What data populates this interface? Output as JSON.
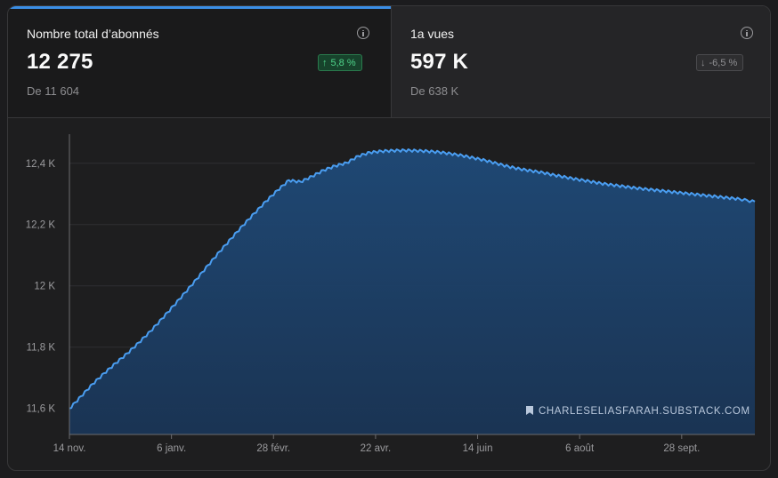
{
  "metrics": [
    {
      "label": "Nombre total d’abonnés",
      "value": "12 275",
      "change": "5,8 %",
      "direction": "up",
      "previous": "De 11 604",
      "icon": "info-icon"
    },
    {
      "label": "1a vues",
      "value": "597 K",
      "change": "-6,5 %",
      "direction": "down",
      "previous": "De 638 K",
      "icon": "info-icon"
    }
  ],
  "watermark": {
    "text": "CHARLESELIASFARAH.SUBSTACK.COM",
    "icon": "bookmark-icon"
  },
  "colors": {
    "accent": "#3a8ee6",
    "line": "#4a9df0",
    "area": "#1d3f66",
    "positive": "#4fd38a",
    "background": "#1e1e1f"
  },
  "chart_data": {
    "type": "area",
    "title": "",
    "xlabel": "",
    "ylabel": "",
    "y_tick_labels": [
      "11,6 K",
      "11,8 K",
      "12 K",
      "12,2 K",
      "12,4 K"
    ],
    "y_ticks": [
      11600,
      11800,
      12000,
      12200,
      12400
    ],
    "x_tick_labels": [
      "14 nov.",
      "6 janv.",
      "28 févr.",
      "22 avr.",
      "14 juin",
      "6 août",
      "28 sept."
    ],
    "x_tick_days": [
      0,
      53,
      106,
      159,
      212,
      265,
      318
    ],
    "ylim": [
      11515,
      12495
    ],
    "xlim": [
      0,
      356
    ],
    "grid": true,
    "legend": "none",
    "series": [
      {
        "x": [
          0,
          6,
          12,
          18,
          24,
          30,
          36,
          42,
          48,
          54,
          60,
          66,
          72,
          78,
          84,
          90,
          96,
          102,
          108,
          114,
          120,
          126,
          132,
          138,
          144,
          150,
          156,
          162,
          168,
          174,
          180,
          186,
          192,
          198,
          204,
          210,
          216,
          222,
          228,
          234,
          240,
          246,
          252,
          258,
          264,
          270,
          276,
          282,
          288,
          294,
          300,
          306,
          312,
          318,
          324,
          330,
          336,
          342,
          348,
          356
        ],
        "y": [
          11600,
          11640,
          11680,
          11715,
          11748,
          11780,
          11815,
          11852,
          11893,
          11935,
          11978,
          12022,
          12068,
          12112,
          12155,
          12197,
          12237,
          12276,
          12312,
          12345,
          12340,
          12358,
          12378,
          12392,
          12402,
          12424,
          12436,
          12440,
          12442,
          12443,
          12442,
          12440,
          12437,
          12432,
          12426,
          12418,
          12410,
          12400,
          12390,
          12382,
          12376,
          12370,
          12362,
          12355,
          12348,
          12342,
          12335,
          12330,
          12325,
          12320,
          12316,
          12312,
          12308,
          12304,
          12300,
          12296,
          12292,
          12288,
          12284,
          12275
        ]
      }
    ]
  }
}
